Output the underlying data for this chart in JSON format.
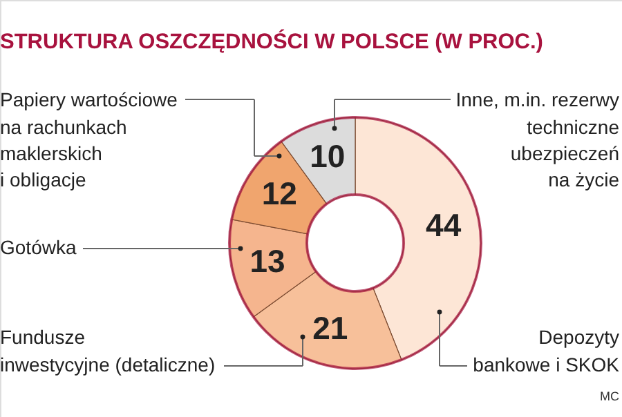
{
  "chart_data": {
    "type": "donut",
    "title": "STRUKTURA OSZCZĘDNOŚCI W POLSCE (W PROC.)",
    "categories": [
      "Depozyty bankowe i SKOK",
      "Fundusze inwestycyjne (detaliczne)",
      "Gotówka",
      "Papiery wartościowe na rachunkach maklerskich i obligacje",
      "Inne, m.in. rezerwy techniczne ubezpieczeń na życie"
    ],
    "values": [
      44,
      21,
      13,
      12,
      10
    ],
    "colors": [
      "#fde6d6",
      "#f7c09a",
      "#f5b58e",
      "#f0a56e",
      "#dcdcdc"
    ],
    "data_labels": true,
    "annotations": [
      "MC"
    ]
  }
}
